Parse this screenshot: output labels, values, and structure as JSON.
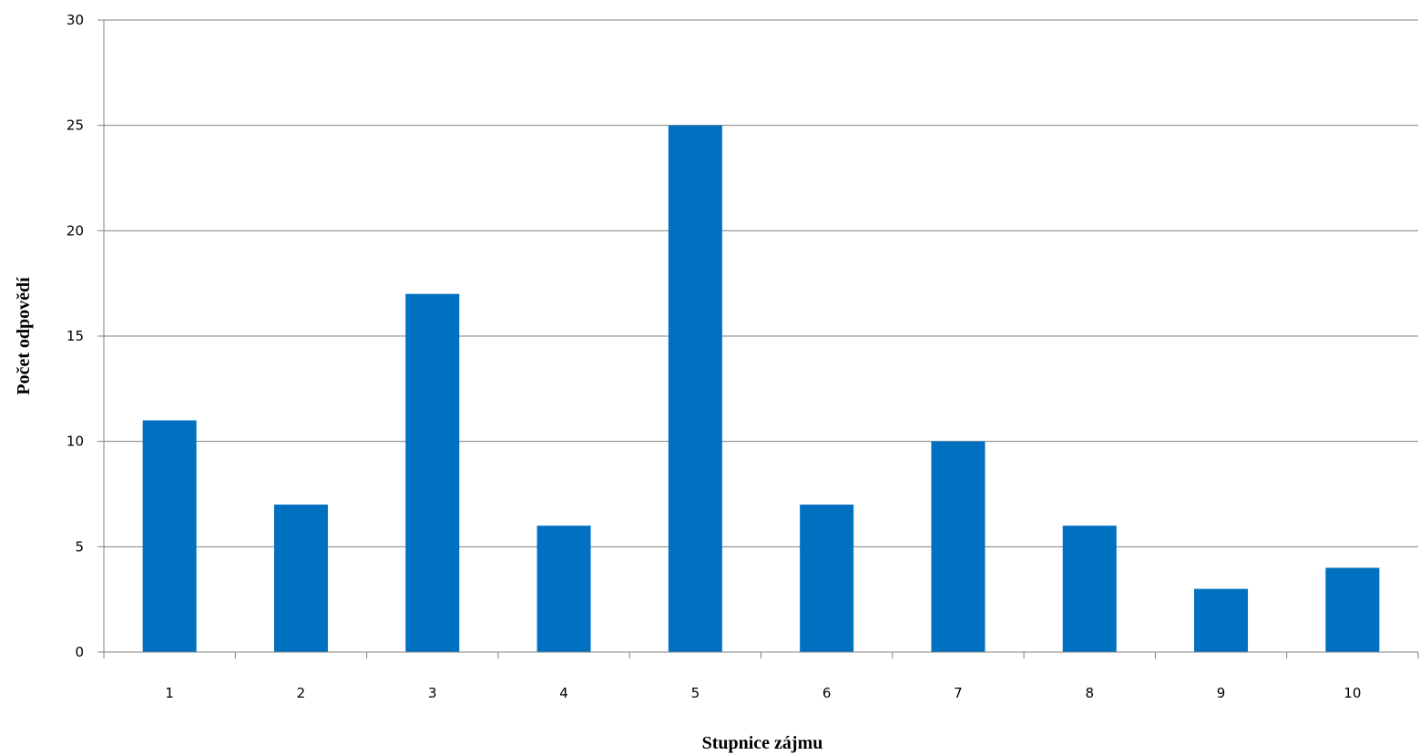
{
  "chart_data": {
    "type": "bar",
    "title": "",
    "xlabel": "Stupnice zájmu",
    "ylabel": "Počet odpovědí",
    "categories": [
      "1",
      "2",
      "3",
      "4",
      "5",
      "6",
      "7",
      "8",
      "9",
      "10"
    ],
    "values": [
      11,
      7,
      17,
      6,
      25,
      7,
      10,
      6,
      3,
      4
    ],
    "ylim": [
      0,
      30
    ],
    "yticks": [
      "0",
      "5",
      "10",
      "15",
      "20",
      "25",
      "30"
    ],
    "grid": true,
    "legend": "none",
    "colors": {
      "bar": "#0070C0",
      "grid": "#808080",
      "axis": "#808080"
    }
  }
}
